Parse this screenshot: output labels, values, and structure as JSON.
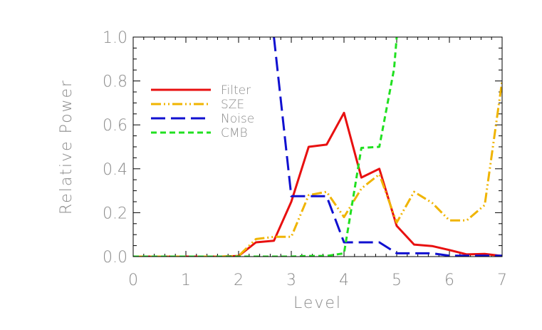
{
  "chart_data": {
    "type": "line",
    "xlabel": "Level",
    "ylabel": "Relative Power",
    "xlim": [
      0,
      7
    ],
    "ylim": [
      0,
      1.0
    ],
    "x_ticks": [
      0,
      1,
      2,
      3,
      4,
      5,
      6,
      7
    ],
    "y_ticks": [
      0.0,
      0.2,
      0.4,
      0.6,
      0.8,
      1.0
    ],
    "x_tick_labels": [
      "0",
      "1",
      "2",
      "3",
      "4",
      "5",
      "6",
      "7"
    ],
    "y_tick_labels": [
      "0.0",
      "0.2",
      "0.4",
      "0.6",
      "0.8",
      "1.0"
    ],
    "grid": false,
    "legend_position": "top-left",
    "series": [
      {
        "name": "Filter",
        "color": "#e81010",
        "style": "solid",
        "x": [
          0,
          0.33,
          0.67,
          1,
          1.33,
          1.67,
          2,
          2.33,
          2.67,
          3,
          3.33,
          3.67,
          4,
          4.33,
          4.67,
          5,
          5.33,
          5.67,
          6,
          6.33,
          6.67,
          7
        ],
        "values": [
          0.0,
          0.0,
          0.0,
          0.0,
          0.0,
          0.0,
          0.003,
          0.065,
          0.072,
          0.25,
          0.5,
          0.51,
          0.655,
          0.36,
          0.4,
          0.14,
          0.055,
          0.048,
          0.03,
          0.01,
          0.012,
          0.003
        ]
      },
      {
        "name": "SZE",
        "color": "#f0b400",
        "style": "dash-dot-dot",
        "x": [
          0,
          0.33,
          0.67,
          1,
          1.33,
          1.67,
          2,
          2.33,
          2.67,
          3,
          3.33,
          3.67,
          4,
          4.33,
          4.67,
          5,
          5.33,
          5.67,
          6,
          6.33,
          6.67,
          7
        ],
        "values": [
          0.0,
          0.0,
          0.0,
          0.0,
          0.0,
          0.0,
          0.003,
          0.08,
          0.09,
          0.09,
          0.28,
          0.295,
          0.18,
          0.31,
          0.375,
          0.155,
          0.295,
          0.245,
          0.165,
          0.165,
          0.235,
          0.8
        ]
      },
      {
        "name": "Noise",
        "color": "#1010d0",
        "style": "long-dash",
        "x": [
          2.67,
          3,
          3.33,
          3.67,
          4,
          4.33,
          4.67,
          5,
          5.33,
          5.67,
          6,
          6.33,
          6.67,
          7
        ],
        "values": [
          1.0,
          0.275,
          0.275,
          0.275,
          0.065,
          0.065,
          0.065,
          0.015,
          0.015,
          0.015,
          0.004,
          0.004,
          0.004,
          0.004
        ]
      },
      {
        "name": "CMB",
        "color": "#20e020",
        "style": "short-dash",
        "x": [
          0,
          0.33,
          0.67,
          1,
          1.33,
          1.67,
          2,
          2.33,
          2.67,
          3,
          3.33,
          3.67,
          4,
          4.33,
          4.67,
          4.95,
          5
        ],
        "values": [
          0.0,
          0.0,
          0.0,
          0.0,
          0.0,
          0.0,
          0.0,
          0.0,
          0.0,
          0.0,
          0.003,
          0.003,
          0.015,
          0.495,
          0.5,
          0.855,
          1.0
        ]
      }
    ]
  }
}
